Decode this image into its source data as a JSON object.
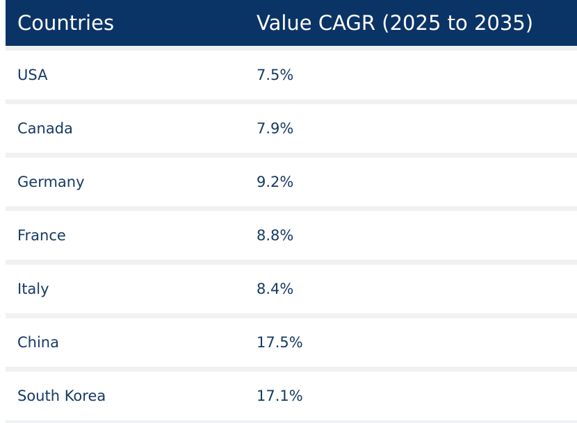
{
  "table": {
    "header": [
      "Countries",
      "Value CAGR (2025 to 2035)"
    ],
    "rows": [
      [
        "USA",
        "7.5%"
      ],
      [
        "Canada",
        "7.9%"
      ],
      [
        "Germany",
        "9.2%"
      ],
      [
        "France",
        "8.8%"
      ],
      [
        "Italy",
        "8.4%"
      ],
      [
        "China",
        "17.5%"
      ],
      [
        "South Korea",
        "17.1%"
      ]
    ]
  }
}
